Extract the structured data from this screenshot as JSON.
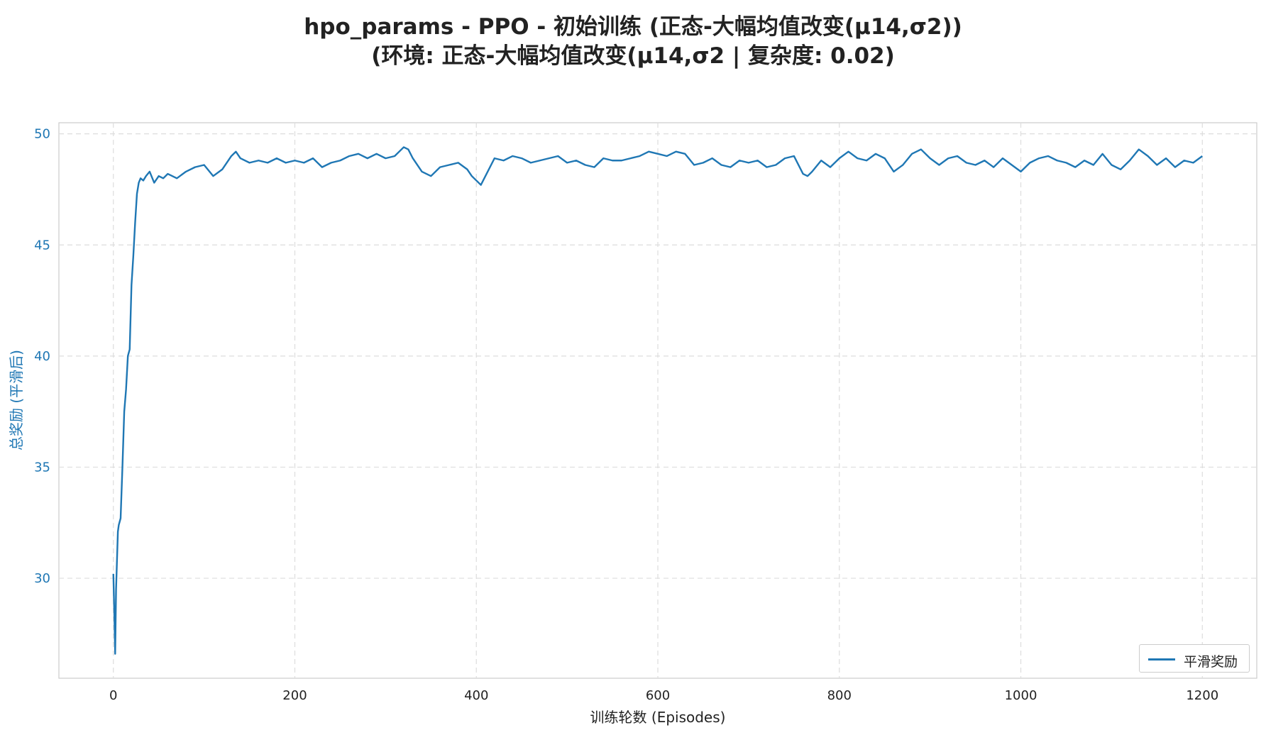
{
  "chart_data": {
    "type": "line",
    "title_line1": "hpo_params - PPO - 初始训练 (正态-大幅均值改变(μ14,σ2))",
    "title_line2": "(环境: 正态-大幅均值改变(μ14,σ2 | 复杂度: 0.02)",
    "xlabel": "训练轮数 (Episodes)",
    "ylabel": "总奖励 (平滑后)",
    "xlim": [
      -60,
      1260
    ],
    "ylim": [
      25.5,
      50.5
    ],
    "xticks": [
      0,
      200,
      400,
      600,
      800,
      1000,
      1200
    ],
    "yticks": [
      30,
      35,
      40,
      45,
      50
    ],
    "grid": true,
    "legend_position": "bottom-right",
    "series_color": "#1f77b4",
    "series": [
      {
        "name": "平滑奖励",
        "x": [
          0,
          1,
          2,
          3,
          4,
          5,
          6,
          8,
          10,
          12,
          14,
          16,
          18,
          20,
          22,
          24,
          26,
          28,
          30,
          33,
          36,
          40,
          45,
          50,
          55,
          60,
          70,
          80,
          90,
          100,
          110,
          120,
          130,
          135,
          140,
          150,
          160,
          170,
          180,
          190,
          200,
          210,
          220,
          230,
          240,
          250,
          260,
          270,
          280,
          290,
          300,
          310,
          320,
          325,
          330,
          340,
          350,
          360,
          370,
          380,
          390,
          395,
          400,
          405,
          410,
          420,
          430,
          440,
          450,
          460,
          470,
          480,
          490,
          500,
          510,
          520,
          530,
          540,
          550,
          560,
          570,
          580,
          590,
          600,
          610,
          620,
          630,
          640,
          650,
          660,
          670,
          680,
          690,
          700,
          710,
          720,
          730,
          740,
          750,
          760,
          765,
          770,
          780,
          790,
          800,
          810,
          820,
          830,
          840,
          850,
          860,
          870,
          880,
          890,
          900,
          910,
          920,
          930,
          940,
          950,
          960,
          970,
          980,
          990,
          1000,
          1010,
          1020,
          1030,
          1040,
          1050,
          1060,
          1070,
          1080,
          1090,
          1100,
          1110,
          1120,
          1130,
          1140,
          1150,
          1160,
          1170,
          1180,
          1190,
          1200
        ],
        "values": [
          30.2,
          28.5,
          26.6,
          29.5,
          30.8,
          32.1,
          32.4,
          32.7,
          35.0,
          37.5,
          38.5,
          40.0,
          40.3,
          43.2,
          44.5,
          46.0,
          47.3,
          47.8,
          48.0,
          47.9,
          48.1,
          48.3,
          47.8,
          48.1,
          48.0,
          48.2,
          48.0,
          48.3,
          48.5,
          48.6,
          48.1,
          48.4,
          49.0,
          49.2,
          48.9,
          48.7,
          48.8,
          48.7,
          48.9,
          48.7,
          48.8,
          48.7,
          48.9,
          48.5,
          48.7,
          48.8,
          49.0,
          49.1,
          48.9,
          49.1,
          48.9,
          49.0,
          49.4,
          49.3,
          48.9,
          48.3,
          48.1,
          48.5,
          48.6,
          48.7,
          48.4,
          48.1,
          47.9,
          47.7,
          48.1,
          48.9,
          48.8,
          49.0,
          48.9,
          48.7,
          48.8,
          48.9,
          49.0,
          48.7,
          48.8,
          48.6,
          48.5,
          48.9,
          48.8,
          48.8,
          48.9,
          49.0,
          49.2,
          49.1,
          49.0,
          49.2,
          49.1,
          48.6,
          48.7,
          48.9,
          48.6,
          48.5,
          48.8,
          48.7,
          48.8,
          48.5,
          48.6,
          48.9,
          49.0,
          48.2,
          48.1,
          48.3,
          48.8,
          48.5,
          48.9,
          49.2,
          48.9,
          48.8,
          49.1,
          48.9,
          48.3,
          48.6,
          49.1,
          49.3,
          48.9,
          48.6,
          48.9,
          49.0,
          48.7,
          48.6,
          48.8,
          48.5,
          48.9,
          48.6,
          48.3,
          48.7,
          48.9,
          49.0,
          48.8,
          48.7,
          48.5,
          48.8,
          48.6,
          49.1,
          48.6,
          48.4,
          48.8,
          49.3,
          49.0,
          48.6,
          48.9,
          48.5,
          48.8,
          48.7,
          49.0
        ]
      }
    ]
  }
}
